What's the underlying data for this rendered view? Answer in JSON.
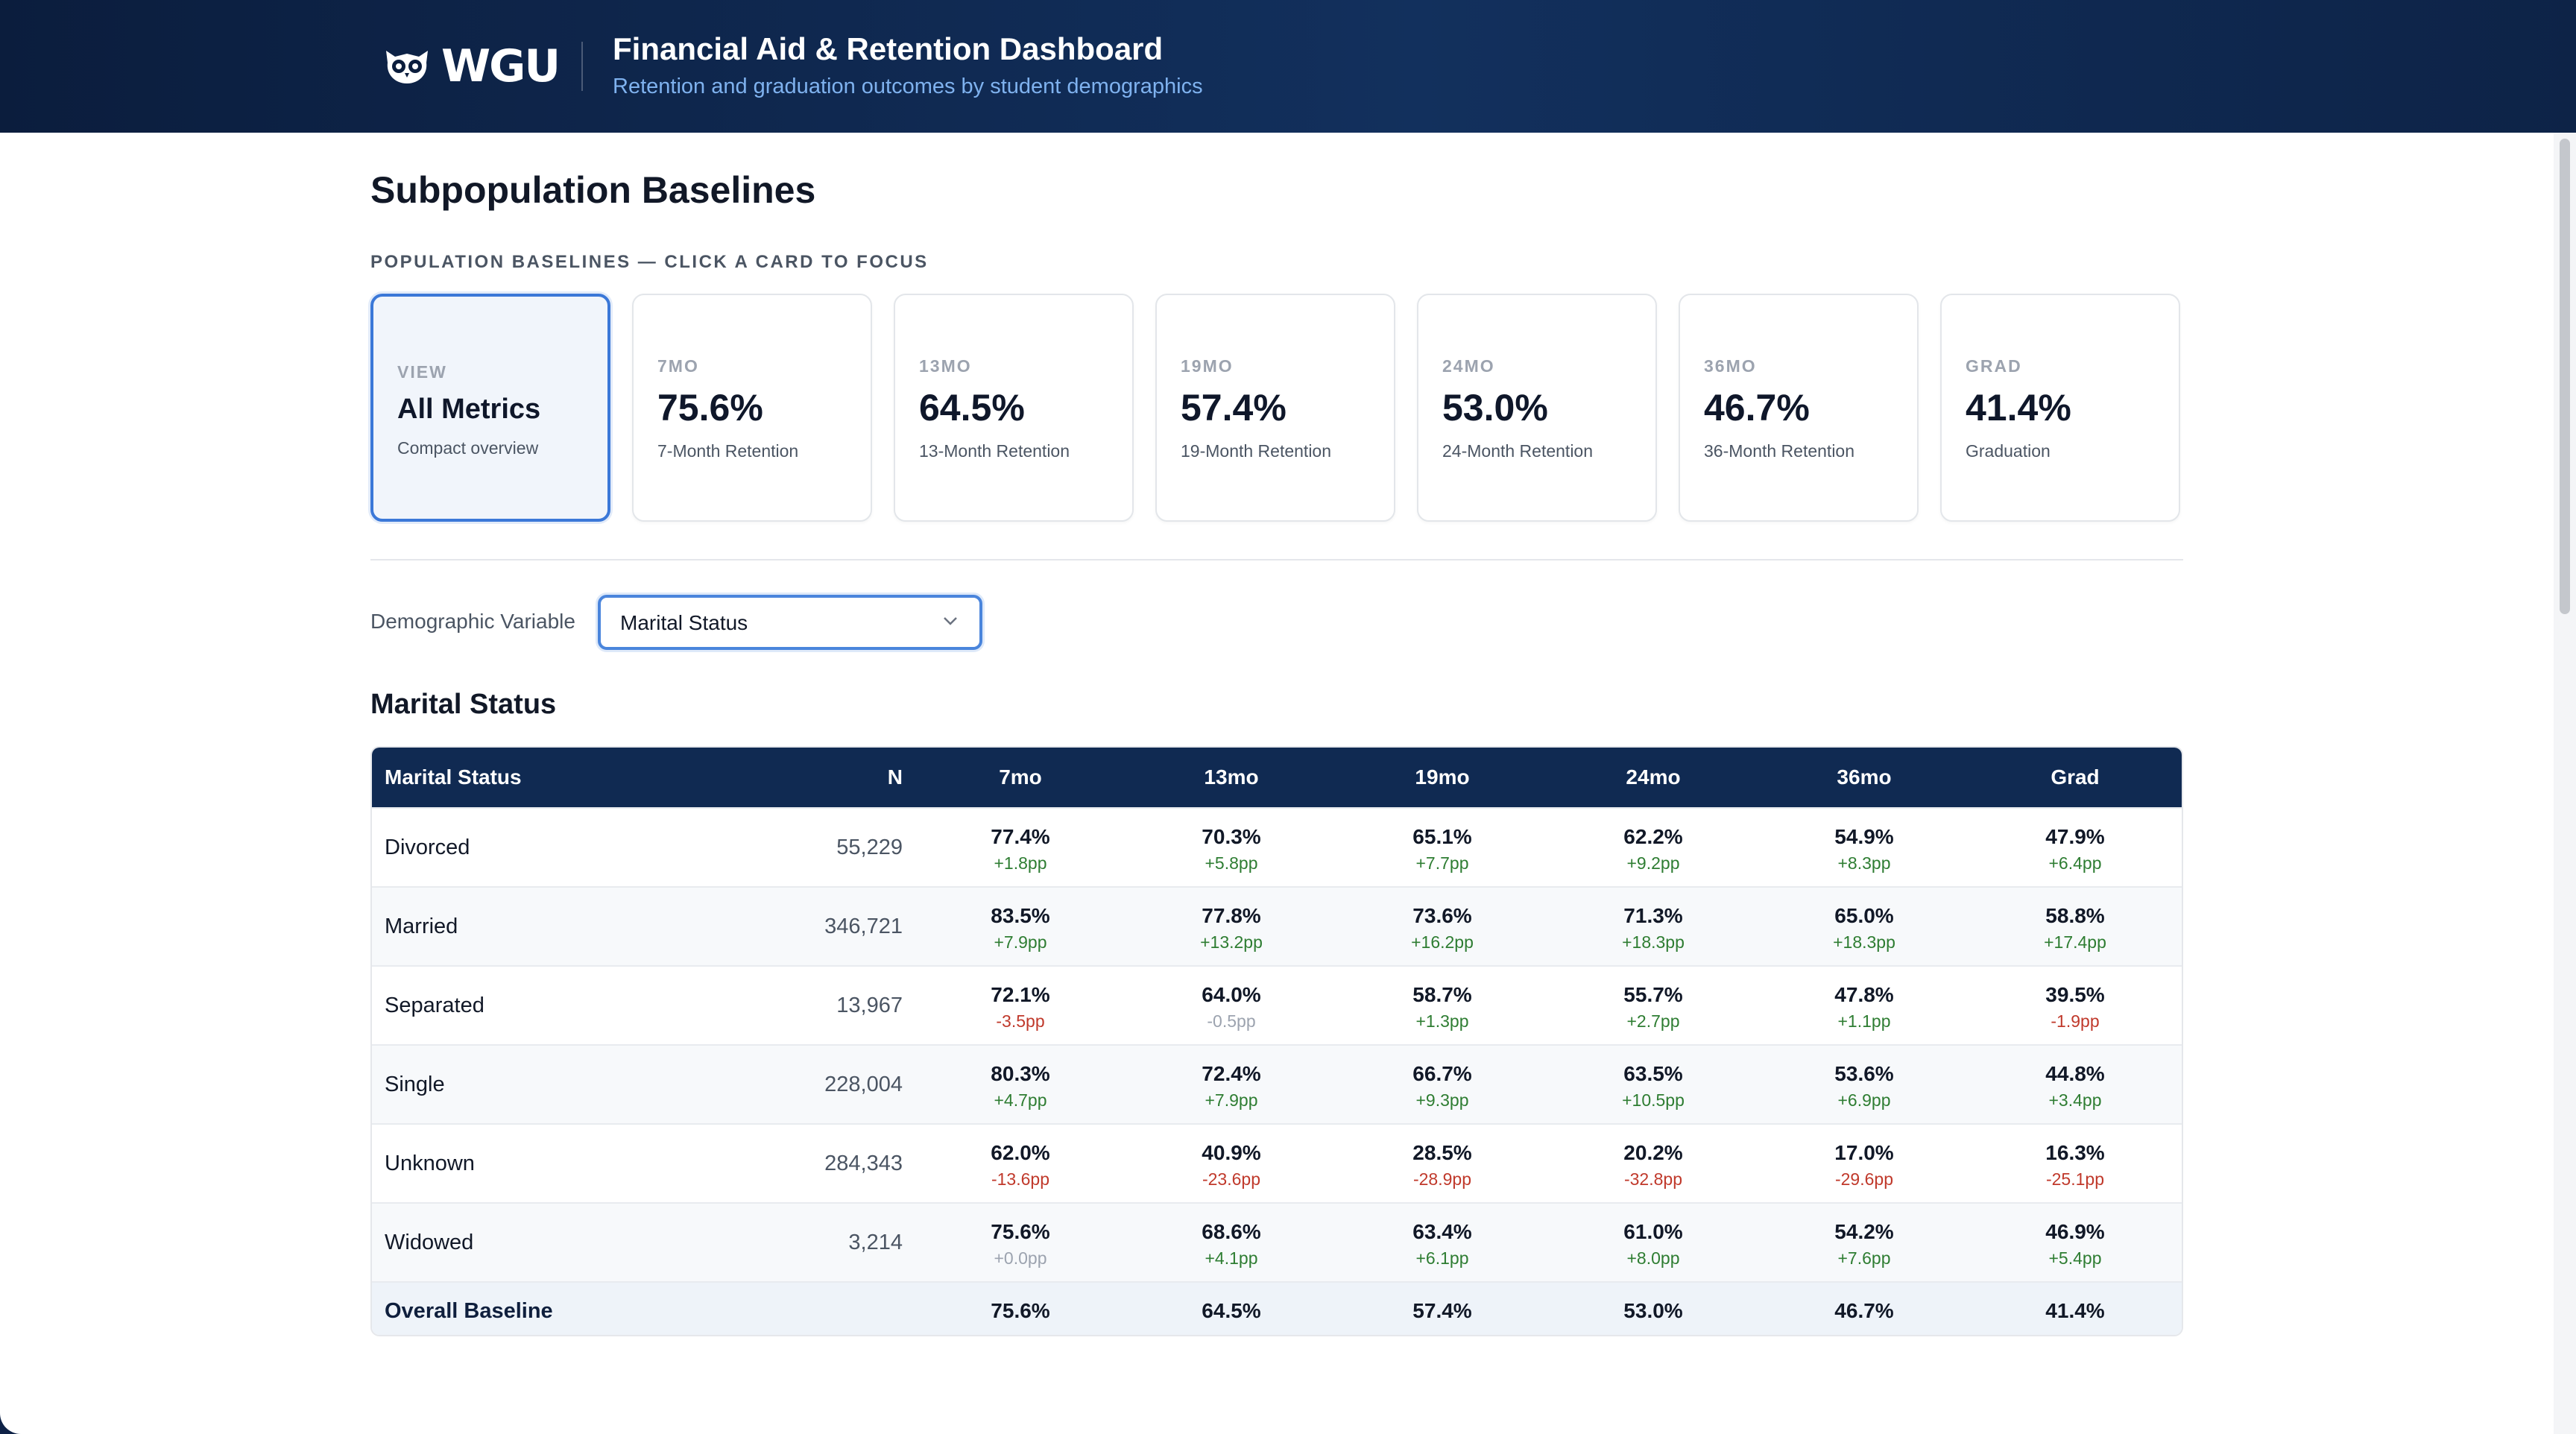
{
  "header": {
    "logo_text": "WGU",
    "title": "Financial Aid & Retention Dashboard",
    "subtitle": "Retention and graduation outcomes by student demographics"
  },
  "page": {
    "title": "Subpopulation Baselines",
    "section_label": "POPULATION BASELINES — CLICK A CARD TO FOCUS"
  },
  "cards": [
    {
      "kicker": "VIEW",
      "value": "All Metrics",
      "desc": "Compact overview",
      "active": true
    },
    {
      "kicker": "7MO",
      "value": "75.6%",
      "desc": "7-Month Retention"
    },
    {
      "kicker": "13MO",
      "value": "64.5%",
      "desc": "13-Month Retention"
    },
    {
      "kicker": "19MO",
      "value": "57.4%",
      "desc": "19-Month Retention"
    },
    {
      "kicker": "24MO",
      "value": "53.0%",
      "desc": "24-Month Retention"
    },
    {
      "kicker": "36MO",
      "value": "46.7%",
      "desc": "36-Month Retention"
    },
    {
      "kicker": "GRAD",
      "value": "41.4%",
      "desc": "Graduation"
    }
  ],
  "filter": {
    "label": "Demographic Variable",
    "selected": "Marital Status"
  },
  "table": {
    "title": "Marital Status",
    "headers": [
      "Marital Status",
      "N",
      "7mo",
      "13mo",
      "19mo",
      "24mo",
      "36mo",
      "Grad"
    ],
    "rows": [
      {
        "label": "Divorced",
        "n": "55,229",
        "vals": [
          "77.4%",
          "70.3%",
          "65.1%",
          "62.2%",
          "54.9%",
          "47.9%"
        ],
        "deltas": [
          "+1.8pp",
          "+5.8pp",
          "+7.7pp",
          "+9.2pp",
          "+8.3pp",
          "+6.4pp"
        ]
      },
      {
        "label": "Married",
        "n": "346,721",
        "vals": [
          "83.5%",
          "77.8%",
          "73.6%",
          "71.3%",
          "65.0%",
          "58.8%"
        ],
        "deltas": [
          "+7.9pp",
          "+13.2pp",
          "+16.2pp",
          "+18.3pp",
          "+18.3pp",
          "+17.4pp"
        ]
      },
      {
        "label": "Separated",
        "n": "13,967",
        "vals": [
          "72.1%",
          "64.0%",
          "58.7%",
          "55.7%",
          "47.8%",
          "39.5%"
        ],
        "deltas": [
          "-3.5pp",
          "-0.5pp",
          "+1.3pp",
          "+2.7pp",
          "+1.1pp",
          "-1.9pp"
        ]
      },
      {
        "label": "Single",
        "n": "228,004",
        "vals": [
          "80.3%",
          "72.4%",
          "66.7%",
          "63.5%",
          "53.6%",
          "44.8%"
        ],
        "deltas": [
          "+4.7pp",
          "+7.9pp",
          "+9.3pp",
          "+10.5pp",
          "+6.9pp",
          "+3.4pp"
        ]
      },
      {
        "label": "Unknown",
        "n": "284,343",
        "vals": [
          "62.0%",
          "40.9%",
          "28.5%",
          "20.2%",
          "17.0%",
          "16.3%"
        ],
        "deltas": [
          "-13.6pp",
          "-23.6pp",
          "-28.9pp",
          "-32.8pp",
          "-29.6pp",
          "-25.1pp"
        ]
      },
      {
        "label": "Widowed",
        "n": "3,214",
        "vals": [
          "75.6%",
          "68.6%",
          "63.4%",
          "61.0%",
          "54.2%",
          "46.9%"
        ],
        "deltas": [
          "+0.0pp",
          "+4.1pp",
          "+6.1pp",
          "+8.0pp",
          "+7.6pp",
          "+5.4pp"
        ]
      }
    ],
    "baseline": {
      "label": "Overall Baseline",
      "vals": [
        "75.6%",
        "64.5%",
        "57.4%",
        "53.0%",
        "46.7%",
        "41.4%"
      ]
    }
  },
  "colors": {
    "header_bg": "#0b1d3d",
    "accent": "#3b78d8",
    "positive": "#2e7d32",
    "negative": "#c0392b",
    "neutral": "#9ca3af"
  }
}
